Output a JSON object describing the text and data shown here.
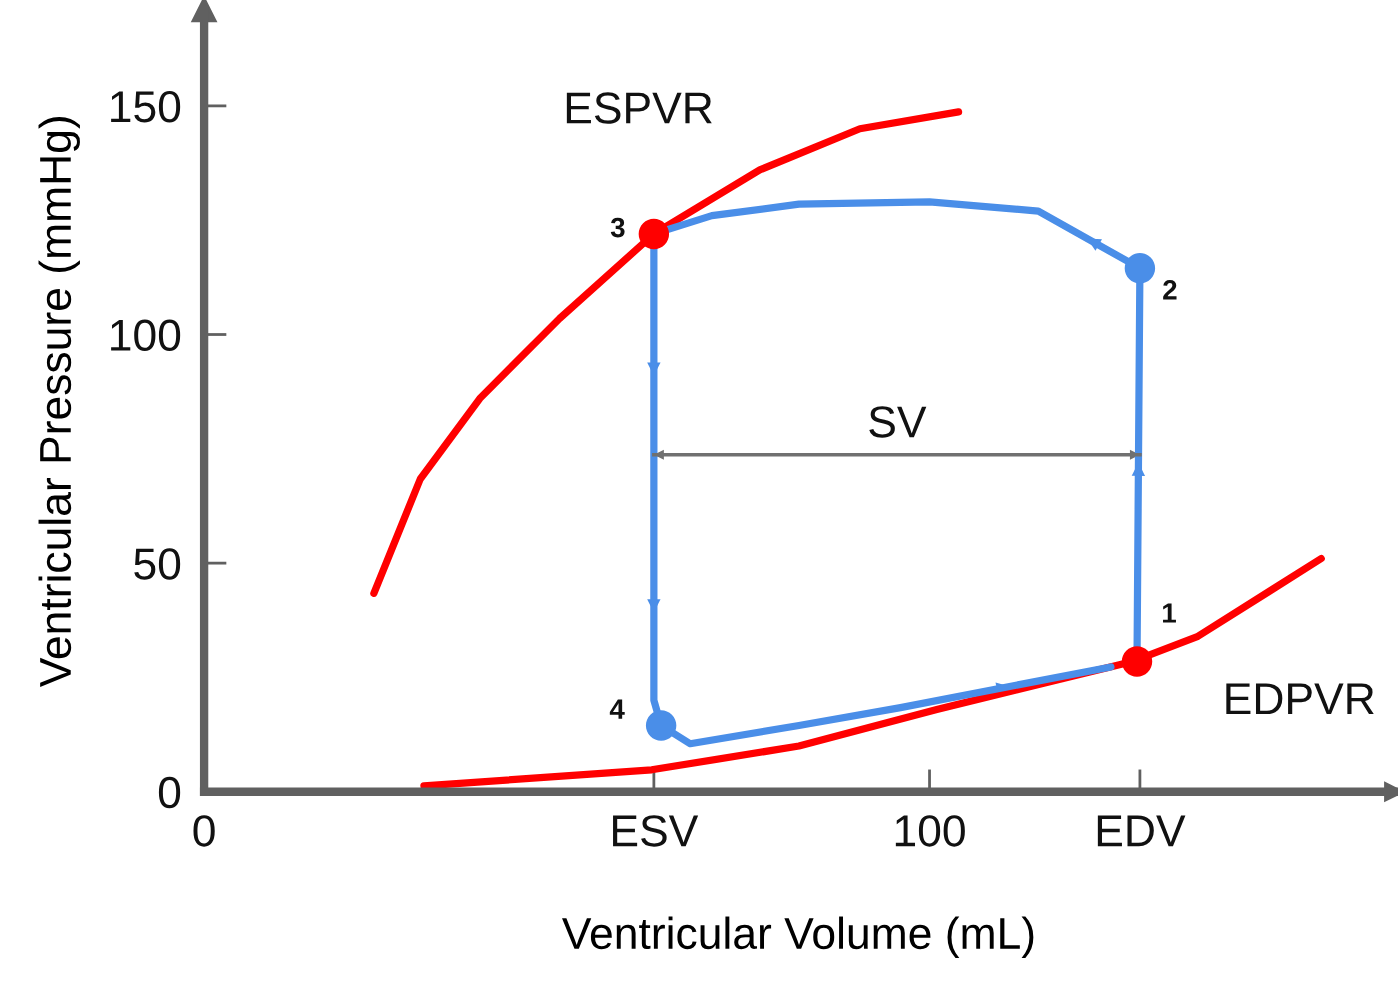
{
  "chart_data": {
    "type": "line",
    "xlabel": "Ventricular Volume (mL)",
    "ylabel": "Ventricular Pressure (mmHg)",
    "xlim": [
      0,
      164
    ],
    "ylim": [
      0,
      171
    ],
    "xticks": [
      0,
      {
        "value": 62,
        "label": "ESV"
      },
      100,
      {
        "value": 129,
        "label": "EDV"
      }
    ],
    "yticks": [
      0,
      50,
      100,
      150
    ],
    "grid": false,
    "legend": false,
    "line_style": "solid",
    "series": [
      {
        "name": "ESPVR",
        "color": "#ff0000",
        "x": [
          23.4,
          29.8,
          38,
          49,
          62,
          76.6,
          90.4,
          104
        ],
        "values": [
          43.4,
          68.4,
          86,
          103.5,
          122,
          136,
          145,
          148.7
        ]
      },
      {
        "name": "EDPVR",
        "color": "#ff0000",
        "x": [
          30.3,
          61.7,
          82,
          101,
          118,
          128,
          137,
          154
        ],
        "values": [
          1.3,
          4.8,
          10,
          18,
          24.6,
          28.5,
          34,
          51
        ]
      },
      {
        "color": "#4a8ee8",
        "x": [
          128.6,
          129,
          115,
          100,
          82,
          70,
          62,
          62,
          62,
          63,
          67,
          82,
          96,
          125
        ],
        "values": [
          28.5,
          114.5,
          127,
          129,
          128.5,
          126,
          122,
          60,
          20,
          14.5,
          10.5,
          14.5,
          18.4,
          27.3
        ]
      },
      {
        "type": "scatter",
        "colors": [
          "#ff0000",
          "#4a8ee8",
          "#ff0000",
          "#4a8ee8"
        ],
        "x": [
          128.6,
          129,
          62,
          63
        ],
        "values": [
          28.5,
          114.5,
          122,
          14.5
        ]
      },
      {
        "name": "SV",
        "color": "#707070",
        "x": [
          62,
          129
        ],
        "values": [
          73.7,
          73.7
        ]
      }
    ],
    "annotations": [
      "1",
      "2",
      "3",
      "4"
    ]
  }
}
